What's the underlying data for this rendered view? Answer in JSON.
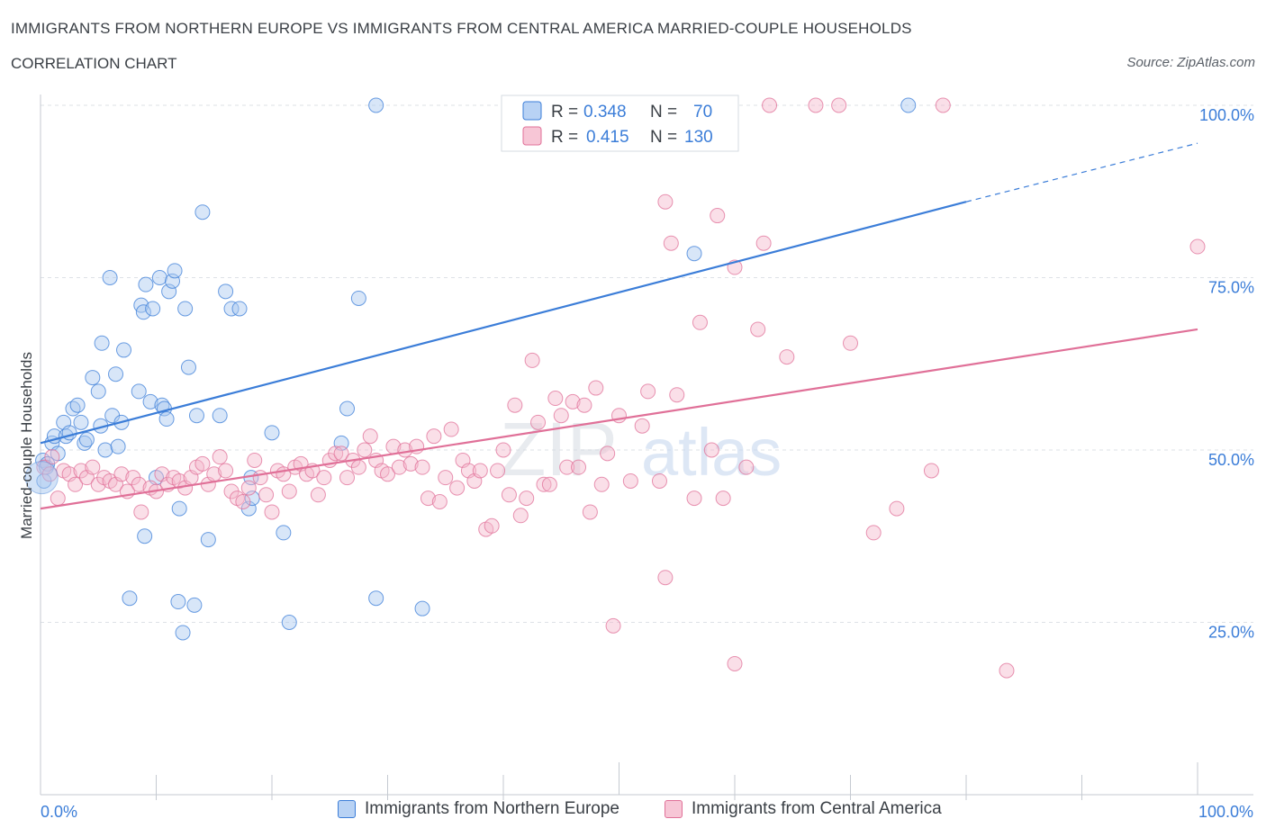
{
  "header": {
    "title": "IMMIGRANTS FROM NORTHERN EUROPE VS IMMIGRANTS FROM CENTRAL AMERICA MARRIED-COUPLE HOUSEHOLDS",
    "subtitle": "CORRELATION CHART",
    "source": "Source: ZipAtlas.com"
  },
  "watermark": {
    "zip": "ZIP",
    "atlas": "atlas"
  },
  "legend_top": {
    "blue": {
      "r_label": "R = ",
      "r_value": "0.348",
      "n_label": "N = ",
      "n_value": "70"
    },
    "pink": {
      "r_label": "R = ",
      "r_value": "0.415",
      "n_label": "N = ",
      "n_value": "130"
    }
  },
  "colors": {
    "blue": "#3b7dd8",
    "blue_fill": "#a8c8f0",
    "pink": "#e07098",
    "pink_fill": "#f4b8cc",
    "grid": "#dde1e6",
    "axis_text": "#3b7dd8"
  },
  "chart_data": {
    "type": "scatter",
    "title": "IMMIGRANTS FROM NORTHERN EUROPE VS IMMIGRANTS FROM CENTRAL AMERICA MARRIED-COUPLE HOUSEHOLDS",
    "xlabel": "",
    "ylabel": "Married-couple Households",
    "xlim": [
      0,
      100
    ],
    "ylim": [
      0,
      100
    ],
    "x_ticks": [
      {
        "value": 0,
        "label": "0.0%"
      },
      {
        "value": 100,
        "label": "100.0%"
      }
    ],
    "y_ticks": [
      {
        "value": 25,
        "label": "25.0%"
      },
      {
        "value": 50,
        "label": "50.0%"
      },
      {
        "value": 75,
        "label": "75.0%"
      },
      {
        "value": 100,
        "label": "100.0%"
      }
    ],
    "grid": true,
    "legend_position": "bottom",
    "series": [
      {
        "name": "Immigrants from Northern Europe",
        "color": "#3b7dd8",
        "R": 0.348,
        "N": 70,
        "trend": {
          "x0": 0,
          "y0": 51.0,
          "x1": 80,
          "y1": 86.0,
          "dashed_to_x": 100,
          "dashed_to_y": 94.5
        },
        "points": [
          [
            0.2,
            48.5
          ],
          [
            0.3,
            45.5
          ],
          [
            0.5,
            47.5
          ],
          [
            0.6,
            48.0
          ],
          [
            1.0,
            51.0
          ],
          [
            1.2,
            52.0
          ],
          [
            1.5,
            49.5
          ],
          [
            2.0,
            54.0
          ],
          [
            2.2,
            52.0
          ],
          [
            2.5,
            52.5
          ],
          [
            2.8,
            56.0
          ],
          [
            3.2,
            56.5
          ],
          [
            3.5,
            54.0
          ],
          [
            3.8,
            51.0
          ],
          [
            4.0,
            51.5
          ],
          [
            4.5,
            60.5
          ],
          [
            5.0,
            58.5
          ],
          [
            5.2,
            53.5
          ],
          [
            5.6,
            50.0
          ],
          [
            6.2,
            55.0
          ],
          [
            6.5,
            61.0
          ],
          [
            6.7,
            50.5
          ],
          [
            7.0,
            54.0
          ],
          [
            7.2,
            64.5
          ],
          [
            5.3,
            65.5
          ],
          [
            6.0,
            75.0
          ],
          [
            8.5,
            58.5
          ],
          [
            8.7,
            71.0
          ],
          [
            8.9,
            70.0
          ],
          [
            9.1,
            74.0
          ],
          [
            9.5,
            57.0
          ],
          [
            9.7,
            70.5
          ],
          [
            10.0,
            46.0
          ],
          [
            10.3,
            75.0
          ],
          [
            10.5,
            56.5
          ],
          [
            10.7,
            56.0
          ],
          [
            10.9,
            54.5
          ],
          [
            11.1,
            73.0
          ],
          [
            11.4,
            74.5
          ],
          [
            11.6,
            76.0
          ],
          [
            12.5,
            70.5
          ],
          [
            12.8,
            62.0
          ],
          [
            13.5,
            55.0
          ],
          [
            14.0,
            84.5
          ],
          [
            15.5,
            55.0
          ],
          [
            16.0,
            73.0
          ],
          [
            16.5,
            70.5
          ],
          [
            17.2,
            70.5
          ],
          [
            18.0,
            41.5
          ],
          [
            18.2,
            46.0
          ],
          [
            18.3,
            43.0
          ],
          [
            20.0,
            52.5
          ],
          [
            21.0,
            38.0
          ],
          [
            21.5,
            25.0
          ],
          [
            26.0,
            51.0
          ],
          [
            26.5,
            56.0
          ],
          [
            27.5,
            72.0
          ],
          [
            29.0,
            28.5
          ],
          [
            9.0,
            37.5
          ],
          [
            12.0,
            41.5
          ],
          [
            14.5,
            37.0
          ],
          [
            7.7,
            28.5
          ],
          [
            11.9,
            28.0
          ],
          [
            13.3,
            27.5
          ],
          [
            12.3,
            23.5
          ],
          [
            33.0,
            27.0
          ],
          [
            29.0,
            100.0
          ],
          [
            53.0,
            100.0
          ],
          [
            75.0,
            100.0
          ],
          [
            56.5,
            78.5
          ]
        ]
      },
      {
        "name": "Immigrants from Central America",
        "color": "#e07098",
        "R": 0.415,
        "N": 130,
        "trend": {
          "x0": 0,
          "y0": 41.5,
          "x1": 100,
          "y1": 67.5
        },
        "points": [
          [
            0.3,
            47.5
          ],
          [
            0.8,
            46.5
          ],
          [
            1.0,
            49.0
          ],
          [
            1.5,
            43.0
          ],
          [
            2.0,
            47.0
          ],
          [
            2.5,
            46.5
          ],
          [
            3.0,
            45.0
          ],
          [
            3.5,
            47.0
          ],
          [
            4.0,
            46.0
          ],
          [
            4.5,
            47.5
          ],
          [
            5.0,
            45.0
          ],
          [
            5.5,
            46.0
          ],
          [
            6.0,
            45.5
          ],
          [
            6.5,
            45.0
          ],
          [
            7.0,
            46.5
          ],
          [
            7.5,
            44.0
          ],
          [
            8.0,
            46.0
          ],
          [
            8.5,
            45.0
          ],
          [
            8.7,
            41.0
          ],
          [
            9.5,
            44.5
          ],
          [
            10.0,
            44.0
          ],
          [
            10.5,
            46.5
          ],
          [
            11.0,
            45.0
          ],
          [
            11.5,
            46.0
          ],
          [
            12.0,
            45.5
          ],
          [
            12.5,
            44.5
          ],
          [
            13.0,
            46.0
          ],
          [
            13.5,
            47.5
          ],
          [
            14.0,
            48.0
          ],
          [
            14.5,
            45.0
          ],
          [
            15.0,
            46.5
          ],
          [
            15.5,
            49.0
          ],
          [
            16.0,
            47.0
          ],
          [
            16.5,
            44.0
          ],
          [
            17.0,
            43.0
          ],
          [
            17.5,
            42.5
          ],
          [
            18.0,
            44.5
          ],
          [
            18.5,
            48.5
          ],
          [
            19.0,
            46.0
          ],
          [
            19.5,
            43.5
          ],
          [
            20.0,
            41.0
          ],
          [
            20.5,
            47.0
          ],
          [
            21.0,
            46.5
          ],
          [
            21.5,
            44.0
          ],
          [
            22.0,
            47.5
          ],
          [
            22.5,
            48.0
          ],
          [
            23.0,
            46.5
          ],
          [
            23.5,
            47.0
          ],
          [
            24.0,
            43.5
          ],
          [
            24.5,
            46.0
          ],
          [
            25.0,
            48.5
          ],
          [
            25.5,
            49.5
          ],
          [
            26.0,
            49.5
          ],
          [
            26.5,
            46.0
          ],
          [
            27.0,
            48.5
          ],
          [
            27.5,
            47.5
          ],
          [
            28.0,
            50.0
          ],
          [
            28.5,
            52.0
          ],
          [
            29.0,
            48.5
          ],
          [
            29.5,
            47.0
          ],
          [
            30.0,
            46.5
          ],
          [
            30.5,
            50.5
          ],
          [
            31.0,
            47.5
          ],
          [
            31.5,
            50.0
          ],
          [
            32.0,
            48.0
          ],
          [
            32.5,
            50.5
          ],
          [
            33.0,
            47.5
          ],
          [
            33.5,
            43.0
          ],
          [
            34.0,
            52.0
          ],
          [
            34.5,
            42.5
          ],
          [
            35.0,
            46.0
          ],
          [
            35.5,
            53.0
          ],
          [
            36.0,
            44.5
          ],
          [
            36.5,
            48.5
          ],
          [
            37.0,
            47.0
          ],
          [
            37.5,
            45.5
          ],
          [
            38.0,
            47.0
          ],
          [
            38.5,
            38.5
          ],
          [
            39.0,
            39.0
          ],
          [
            39.5,
            47.0
          ],
          [
            40.0,
            50.0
          ],
          [
            40.5,
            43.5
          ],
          [
            41.0,
            56.5
          ],
          [
            41.5,
            40.5
          ],
          [
            42.0,
            43.0
          ],
          [
            42.5,
            63.0
          ],
          [
            43.0,
            54.0
          ],
          [
            43.5,
            45.0
          ],
          [
            44.0,
            45.0
          ],
          [
            44.5,
            57.5
          ],
          [
            45.0,
            55.0
          ],
          [
            45.5,
            47.5
          ],
          [
            46.0,
            57.0
          ],
          [
            46.5,
            47.5
          ],
          [
            47.0,
            56.5
          ],
          [
            47.5,
            41.0
          ],
          [
            48.0,
            59.0
          ],
          [
            48.5,
            45.0
          ],
          [
            49.0,
            49.5
          ],
          [
            50.0,
            55.0
          ],
          [
            51.0,
            45.5
          ],
          [
            52.0,
            53.5
          ],
          [
            52.5,
            58.5
          ],
          [
            53.5,
            45.5
          ],
          [
            54.0,
            86.0
          ],
          [
            54.5,
            80.0
          ],
          [
            55.0,
            58.0
          ],
          [
            56.5,
            43.0
          ],
          [
            57.0,
            68.5
          ],
          [
            58.0,
            50.0
          ],
          [
            58.5,
            84.0
          ],
          [
            59.0,
            43.0
          ],
          [
            60.0,
            76.5
          ],
          [
            61.0,
            47.5
          ],
          [
            62.0,
            67.5
          ],
          [
            62.5,
            80.0
          ],
          [
            64.5,
            63.5
          ],
          [
            70.0,
            65.5
          ],
          [
            72.0,
            38.0
          ],
          [
            74.0,
            41.5
          ],
          [
            77.0,
            47.0
          ],
          [
            54.0,
            31.5
          ],
          [
            49.5,
            24.5
          ],
          [
            60.0,
            19.0
          ],
          [
            83.5,
            18.0
          ],
          [
            100.0,
            79.5
          ],
          [
            63.0,
            100.0
          ],
          [
            67.0,
            100.0
          ],
          [
            69.0,
            100.0
          ],
          [
            78.0,
            100.0
          ]
        ]
      }
    ]
  }
}
